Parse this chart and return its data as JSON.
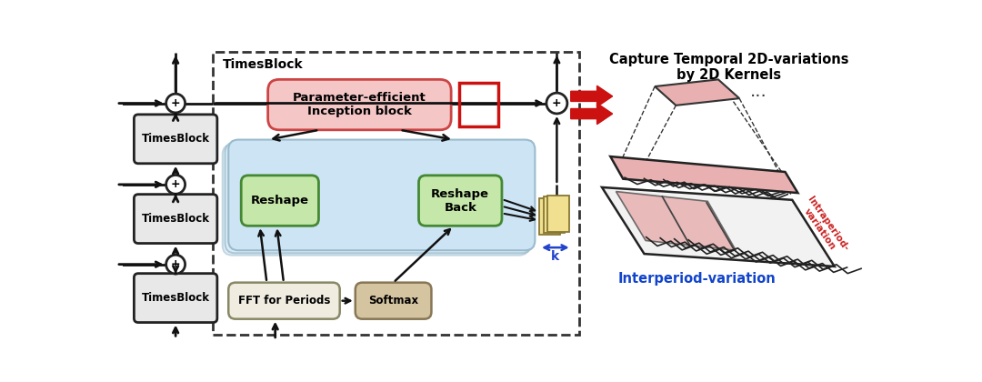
{
  "bg_color": "#ffffff",
  "timesblock_box_color": "#e8e8e8",
  "inception_box_color": "#f5c6c6",
  "reshape_box_color": "#c5e8aa",
  "fft_box_color": "#f0ede0",
  "softmax_box_color": "#d4c4a0",
  "blue_region_color": "#cde4f5",
  "blue_layer_color": "#d8eaf7",
  "right_title": "Capture Temporal 2D-variations\nby 2D Kernels",
  "interperiod_label": "Interperiod-variation",
  "intraperiod_label": "Intraperiod-\nvariation",
  "dots_label": "...",
  "k_label": "k",
  "timesblock_label": "TimesBlock",
  "main_box_label": "TimesBlock",
  "inception_label": "Parameter-efficient\nInception block",
  "reshape_label": "Reshape",
  "reshape_back_label": "Reshape\nBack",
  "fft_label": "FFT for Periods",
  "softmax_label": "Softmax"
}
